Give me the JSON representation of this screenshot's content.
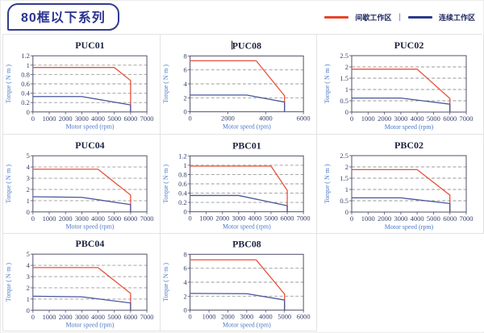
{
  "header": {
    "badge": "80框以下系列",
    "legend": {
      "intermittent_label": "间歇工作区",
      "separator": "|",
      "continuous_label": "连续工作区",
      "intermittent_color": "#e8432a",
      "continuous_color": "#2b3a8c"
    }
  },
  "style": {
    "curve_red": "#e8513b",
    "curve_blue": "#47569b",
    "grid_color": "#9a9a9a",
    "spine_color": "#50506a"
  },
  "chart_data": [
    {
      "type": "line",
      "title": "PUC01",
      "title_caret": false,
      "xlabel": "Motor speed (rpm)",
      "ylabel": "Torque ( N·m )",
      "xlim": [
        0,
        7000
      ],
      "ylim": [
        0,
        1.2
      ],
      "xticks": [
        0,
        1000,
        2000,
        3000,
        4000,
        5000,
        6000,
        7000
      ],
      "yticks": [
        0,
        0.2,
        0.4,
        0.6,
        0.8,
        1,
        1.2
      ],
      "grid": true,
      "legend_position": "none",
      "series": [
        {
          "name": "间歇工作区",
          "color": "#e8513b",
          "points": [
            [
              0,
              0.95
            ],
            [
              5000,
              0.95
            ],
            [
              6000,
              0.67
            ],
            [
              6000,
              0
            ]
          ]
        },
        {
          "name": "连续工作区",
          "color": "#47569b",
          "points": [
            [
              0,
              0.33
            ],
            [
              3000,
              0.33
            ],
            [
              6000,
              0.15
            ],
            [
              6000,
              0
            ]
          ]
        }
      ]
    },
    {
      "type": "line",
      "title": "PUC08",
      "title_caret": true,
      "xlabel": "Motor speed (rpm)",
      "ylabel": "Torque ( N·m )",
      "xlim": [
        0,
        6000
      ],
      "ylim": [
        0,
        8
      ],
      "xticks": [
        0,
        2000,
        4000,
        6000
      ],
      "yticks": [
        0,
        2,
        4,
        6,
        8
      ],
      "grid": true,
      "legend_position": "none",
      "series": [
        {
          "name": "间歇工作区",
          "color": "#e8513b",
          "points": [
            [
              0,
              7.3
            ],
            [
              3500,
              7.3
            ],
            [
              5000,
              2.3
            ],
            [
              5000,
              0
            ]
          ]
        },
        {
          "name": "连续工作区",
          "color": "#47569b",
          "points": [
            [
              0,
              2.4
            ],
            [
              3000,
              2.4
            ],
            [
              5000,
              1.4
            ],
            [
              5000,
              0
            ]
          ]
        }
      ]
    },
    {
      "type": "line",
      "title": "PUC02",
      "title_caret": false,
      "xlabel": "Motor speed (rpm)",
      "ylabel": "Torque ( N·m )",
      "xlim": [
        0,
        7000
      ],
      "ylim": [
        0,
        2.5
      ],
      "xticks": [
        0,
        1000,
        2000,
        3000,
        4000,
        5000,
        6000,
        7000
      ],
      "yticks": [
        0,
        0.5,
        1,
        1.5,
        2,
        2.5
      ],
      "grid": true,
      "legend_position": "none",
      "series": [
        {
          "name": "间歇工作区",
          "color": "#e8513b",
          "points": [
            [
              0,
              1.9
            ],
            [
              4000,
              1.9
            ],
            [
              6000,
              0.6
            ],
            [
              6000,
              0
            ]
          ]
        },
        {
          "name": "连续工作区",
          "color": "#47569b",
          "points": [
            [
              0,
              0.62
            ],
            [
              3000,
              0.62
            ],
            [
              6000,
              0.35
            ],
            [
              6000,
              0
            ]
          ]
        }
      ]
    },
    {
      "type": "line",
      "title": "PUC04",
      "title_caret": false,
      "xlabel": "Motor speed (rpm)",
      "ylabel": "Torque ( N·m )",
      "xlim": [
        0,
        7000
      ],
      "ylim": [
        0,
        5
      ],
      "xticks": [
        0,
        1000,
        2000,
        3000,
        4000,
        5000,
        6000,
        7000
      ],
      "yticks": [
        0,
        1,
        2,
        3,
        4,
        5
      ],
      "grid": true,
      "legend_position": "none",
      "series": [
        {
          "name": "间歇工作区",
          "color": "#e8513b",
          "points": [
            [
              0,
              3.8
            ],
            [
              4000,
              3.8
            ],
            [
              6000,
              1.5
            ],
            [
              6000,
              0
            ]
          ]
        },
        {
          "name": "连续工作区",
          "color": "#47569b",
          "points": [
            [
              0,
              1.35
            ],
            [
              3000,
              1.3
            ],
            [
              6000,
              0.65
            ],
            [
              6000,
              0
            ]
          ]
        }
      ]
    },
    {
      "type": "line",
      "title": "PBC01",
      "title_caret": false,
      "xlabel": "Motor speed (rpm)",
      "ylabel": "Torque ( N·m )",
      "xlim": [
        0,
        7000
      ],
      "ylim": [
        0,
        1.2
      ],
      "xticks": [
        0,
        1000,
        2000,
        3000,
        4000,
        5000,
        6000,
        7000
      ],
      "yticks": [
        0,
        0.2,
        0.4,
        0.6,
        0.8,
        1,
        1.2
      ],
      "grid": true,
      "legend_position": "none",
      "series": [
        {
          "name": "间歇工作区",
          "color": "#e8513b",
          "points": [
            [
              0,
              0.98
            ],
            [
              5000,
              0.98
            ],
            [
              6000,
              0.46
            ],
            [
              6000,
              0
            ]
          ]
        },
        {
          "name": "连续工作区",
          "color": "#47569b",
          "points": [
            [
              0,
              0.35
            ],
            [
              3000,
              0.35
            ],
            [
              6000,
              0.13
            ],
            [
              6000,
              0
            ]
          ]
        }
      ]
    },
    {
      "type": "line",
      "title": "PBC02",
      "title_caret": false,
      "xlabel": "Motor speed (rpm)",
      "ylabel": "Torque ( N·m )",
      "xlim": [
        0,
        7000
      ],
      "ylim": [
        0,
        2.5
      ],
      "xticks": [
        0,
        1000,
        2000,
        3000,
        4000,
        5000,
        6000,
        7000
      ],
      "yticks": [
        0,
        0.5,
        1,
        1.5,
        2,
        2.5
      ],
      "grid": true,
      "legend_position": "none",
      "series": [
        {
          "name": "间歇工作区",
          "color": "#e8513b",
          "points": [
            [
              0,
              1.88
            ],
            [
              4000,
              1.88
            ],
            [
              6000,
              0.75
            ],
            [
              6000,
              0
            ]
          ]
        },
        {
          "name": "连续工作区",
          "color": "#47569b",
          "points": [
            [
              0,
              0.63
            ],
            [
              3000,
              0.63
            ],
            [
              6000,
              0.38
            ],
            [
              6000,
              0
            ]
          ]
        }
      ]
    },
    {
      "type": "line",
      "title": "PBC04",
      "title_caret": false,
      "xlabel": "Motor speed (rpm)",
      "ylabel": "Torque ( N·m )",
      "xlim": [
        0,
        7000
      ],
      "ylim": [
        0,
        5
      ],
      "xticks": [
        0,
        1000,
        2000,
        3000,
        4000,
        5000,
        6000,
        7000
      ],
      "yticks": [
        0,
        1,
        2,
        3,
        4,
        5
      ],
      "grid": true,
      "legend_position": "none",
      "series": [
        {
          "name": "间歇工作区",
          "color": "#e8513b",
          "points": [
            [
              0,
              3.8
            ],
            [
              4000,
              3.8
            ],
            [
              6000,
              1.5
            ],
            [
              6000,
              0
            ]
          ]
        },
        {
          "name": "连续工作区",
          "color": "#47569b",
          "points": [
            [
              0,
              1.25
            ],
            [
              3000,
              1.2
            ],
            [
              6000,
              0.65
            ],
            [
              6000,
              0
            ]
          ]
        }
      ]
    },
    {
      "type": "line",
      "title": "PBC08",
      "title_caret": false,
      "xlabel": "Motor speed (rpm)",
      "ylabel": "Torque ( N·m )",
      "xlim": [
        0,
        6000
      ],
      "ylim": [
        0,
        8
      ],
      "xticks": [
        0,
        1000,
        2000,
        3000,
        4000,
        5000,
        6000
      ],
      "yticks": [
        0,
        2,
        4,
        6,
        8
      ],
      "grid": true,
      "legend_position": "none",
      "series": [
        {
          "name": "间歇工作区",
          "color": "#e8513b",
          "points": [
            [
              0,
              7.2
            ],
            [
              3500,
              7.2
            ],
            [
              5000,
              2.3
            ],
            [
              5000,
              0
            ]
          ]
        },
        {
          "name": "连续工作区",
          "color": "#47569b",
          "points": [
            [
              0,
              2.4
            ],
            [
              3000,
              2.35
            ],
            [
              5000,
              1.45
            ],
            [
              5000,
              0
            ]
          ]
        }
      ]
    }
  ]
}
